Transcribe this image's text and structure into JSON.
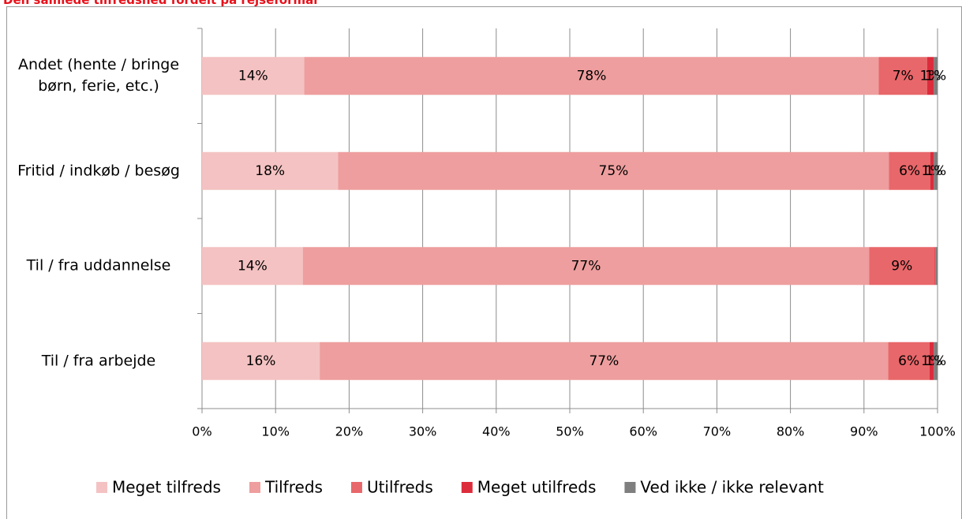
{
  "chart_data": {
    "type": "stacked_barh",
    "title": "Den samlede tilfredshed fordelt på rejseformål",
    "categories": [
      "Andet (hente / bringe børn, ferie, etc.)",
      "Fritid / indkøb / besøg",
      "Til / fra uddannelse",
      "Til / fra arbejde"
    ],
    "series": [
      {
        "name": "Meget tilfreds",
        "color": "#f4c2c2",
        "values": [
          13.9,
          18.5,
          13.7,
          16.0
        ],
        "value_labels": [
          "14%",
          "18%",
          "14%",
          "16%"
        ]
      },
      {
        "name": "Tilfreds",
        "color": "#ee9e9e",
        "values": [
          78.1,
          74.9,
          77.0,
          77.3
        ],
        "value_labels": [
          "78%",
          "75%",
          "77%",
          "77%"
        ]
      },
      {
        "name": "Utilfreds",
        "color": "#e8676a",
        "values": [
          6.6,
          5.6,
          8.9,
          5.6
        ],
        "value_labels": [
          "7%",
          "6%",
          "9%",
          "6%"
        ]
      },
      {
        "name": "Meget utilfreds",
        "color": "#dc2c3c",
        "values": [
          0.9,
          0.5,
          0.1,
          0.6
        ],
        "value_labels": [
          "1%",
          "1%",
          null,
          "1%"
        ]
      },
      {
        "name": "Ved ikke / ikke relevant",
        "color": "#7f7f7f",
        "values": [
          0.5,
          0.5,
          0.3,
          0.5
        ],
        "value_labels": [
          "1%",
          "1%",
          null,
          "1%"
        ]
      }
    ],
    "xlim": [
      0,
      100
    ],
    "xticks": [
      {
        "value": 0,
        "label": "0%"
      },
      {
        "value": 10,
        "label": "10%"
      },
      {
        "value": 20,
        "label": "20%"
      },
      {
        "value": 30,
        "label": "30%"
      },
      {
        "value": 40,
        "label": "40%"
      },
      {
        "value": 50,
        "label": "50%"
      },
      {
        "value": 60,
        "label": "60%"
      },
      {
        "value": 70,
        "label": "70%"
      },
      {
        "value": 80,
        "label": "80%"
      },
      {
        "value": 90,
        "label": "90%"
      },
      {
        "value": 100,
        "label": "100%"
      }
    ],
    "grid": true,
    "legend": "bottom"
  }
}
